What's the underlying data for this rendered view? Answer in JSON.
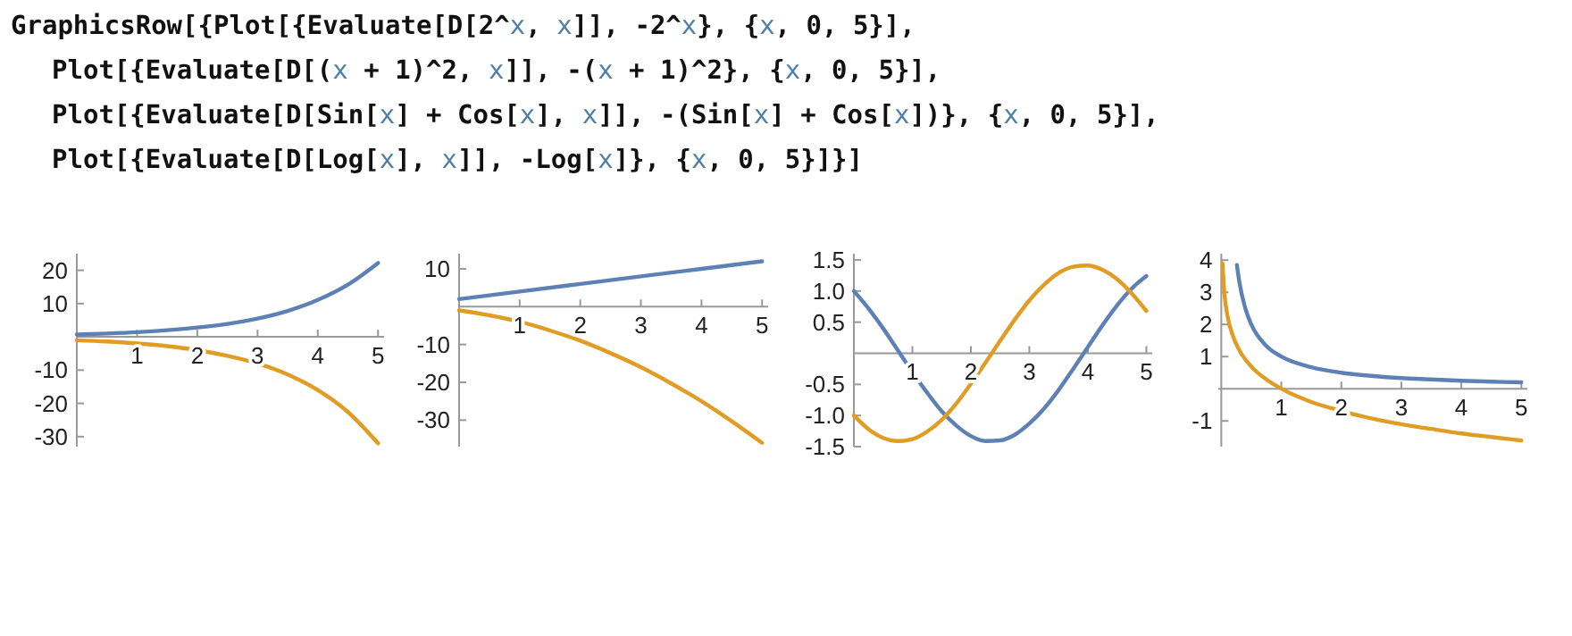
{
  "chart_data": [
    {
      "type": "other",
      "annotations": [
        "GraphicsRow[{Plot[{Evaluate[D[2^x, x]], -2^x}, {x, 0, 5}],",
        "Plot[{Evaluate[D[(x + 1)^2, x]], -(x + 1)^2}, {x, 0, 5}],",
        "Plot[{Evaluate[D[Sin[x] + Cos[x], x]], -(Sin[x] + Cos[x])}, {x, 0, 5}],",
        "Plot[{Evaluate[D[Log[x], x]], -Log[x]}, {x, 0, 5}]}]"
      ]
    },
    {
      "type": "line",
      "xlim": [
        0,
        5.1
      ],
      "ylim": [
        -33,
        25
      ],
      "xticks": [
        1,
        2,
        3,
        4,
        5
      ],
      "yticks": [
        20,
        10,
        -10,
        -20,
        -30
      ],
      "series": [
        {
          "color": "#5e81b5",
          "x": [
            0,
            0.5,
            1,
            1.5,
            2,
            2.5,
            3,
            3.5,
            4,
            4.5,
            5
          ],
          "values": [
            0.7,
            1,
            1.4,
            2,
            2.8,
            3.9,
            5.5,
            7.8,
            11.1,
            15.7,
            22.2
          ]
        },
        {
          "color": "#e19c24",
          "x": [
            0,
            0.5,
            1,
            1.5,
            2,
            2.5,
            3,
            3.5,
            4,
            4.5,
            5
          ],
          "values": [
            -1,
            -1.4,
            -2,
            -2.8,
            -4,
            -5.7,
            -8,
            -11.3,
            -16,
            -22.6,
            -32
          ]
        }
      ]
    },
    {
      "type": "line",
      "xlim": [
        0,
        5.1
      ],
      "ylim": [
        -37,
        14
      ],
      "xticks": [
        1,
        2,
        3,
        4,
        5
      ],
      "yticks": [
        10,
        -10,
        -20,
        -30
      ],
      "series": [
        {
          "color": "#5e81b5",
          "x": [
            0,
            1,
            2,
            3,
            4,
            5
          ],
          "values": [
            2,
            4,
            6,
            8,
            10,
            12
          ]
        },
        {
          "color": "#e19c24",
          "x": [
            0,
            0.5,
            1,
            1.5,
            2,
            2.5,
            3,
            3.5,
            4,
            4.5,
            5
          ],
          "values": [
            -1,
            -2.3,
            -4,
            -6.3,
            -9,
            -12.3,
            -16,
            -20.3,
            -25,
            -30.3,
            -36
          ]
        }
      ]
    },
    {
      "type": "line",
      "xlim": [
        0,
        5.1
      ],
      "ylim": [
        -1.5,
        1.6
      ],
      "xticks": [
        1,
        2,
        3,
        4,
        5
      ],
      "yticks": [
        1.5,
        {
          "value": 1,
          "label": "1.0"
        },
        0.5,
        -0.5,
        {
          "value": -1,
          "label": "-1.0"
        },
        -1.5
      ],
      "series": [
        {
          "color": "#5e81b5",
          "x": [
            0,
            0.25,
            0.5,
            0.75,
            1,
            1.25,
            1.5,
            1.75,
            2,
            2.25,
            2.5,
            2.75,
            3,
            3.25,
            3.5,
            3.75,
            4,
            4.25,
            4.5,
            4.75,
            5
          ],
          "values": [
            1,
            0.72,
            0.4,
            0.05,
            -0.3,
            -0.63,
            -0.93,
            -1.16,
            -1.33,
            -1.41,
            -1.4,
            -1.31,
            -1.13,
            -0.89,
            -0.59,
            -0.25,
            0.1,
            0.45,
            0.77,
            1.04,
            1.24
          ]
        },
        {
          "color": "#e19c24",
          "x": [
            0,
            0.25,
            0.5,
            0.75,
            1,
            1.25,
            1.5,
            1.75,
            2,
            2.25,
            2.5,
            2.75,
            3,
            3.25,
            3.5,
            3.75,
            4,
            4.25,
            4.5,
            4.75,
            5
          ],
          "values": [
            -1,
            -1.22,
            -1.36,
            -1.41,
            -1.38,
            -1.26,
            -1.07,
            -0.81,
            -0.49,
            -0.15,
            0.2,
            0.54,
            0.85,
            1.1,
            1.29,
            1.39,
            1.41,
            1.34,
            1.19,
            0.96,
            0.68
          ]
        }
      ]
    },
    {
      "type": "line",
      "xlim": [
        -0.05,
        5.1
      ],
      "ylim": [
        -1.8,
        4.2
      ],
      "xticks": [
        1,
        2,
        3,
        4,
        5
      ],
      "yticks": [
        4,
        3,
        2,
        1,
        -1
      ],
      "series": [
        {
          "color": "#5e81b5",
          "x": [
            0.26,
            0.3,
            0.4,
            0.5,
            0.75,
            1,
            1.5,
            2,
            2.5,
            3,
            3.5,
            4,
            4.5,
            5
          ],
          "values": [
            3.85,
            3.33,
            2.5,
            2,
            1.33,
            1,
            0.67,
            0.5,
            0.4,
            0.33,
            0.29,
            0.25,
            0.22,
            0.2
          ]
        },
        {
          "color": "#e19c24",
          "x": [
            0.02,
            0.05,
            0.1,
            0.2,
            0.3,
            0.5,
            0.75,
            1,
            1.5,
            2,
            2.5,
            3,
            3.5,
            4,
            4.5,
            5
          ],
          "values": [
            3.9,
            3,
            2.3,
            1.61,
            1.2,
            0.69,
            0.29,
            0,
            -0.41,
            -0.69,
            -0.92,
            -1.1,
            -1.25,
            -1.39,
            -1.5,
            -1.61
          ]
        }
      ]
    }
  ]
}
